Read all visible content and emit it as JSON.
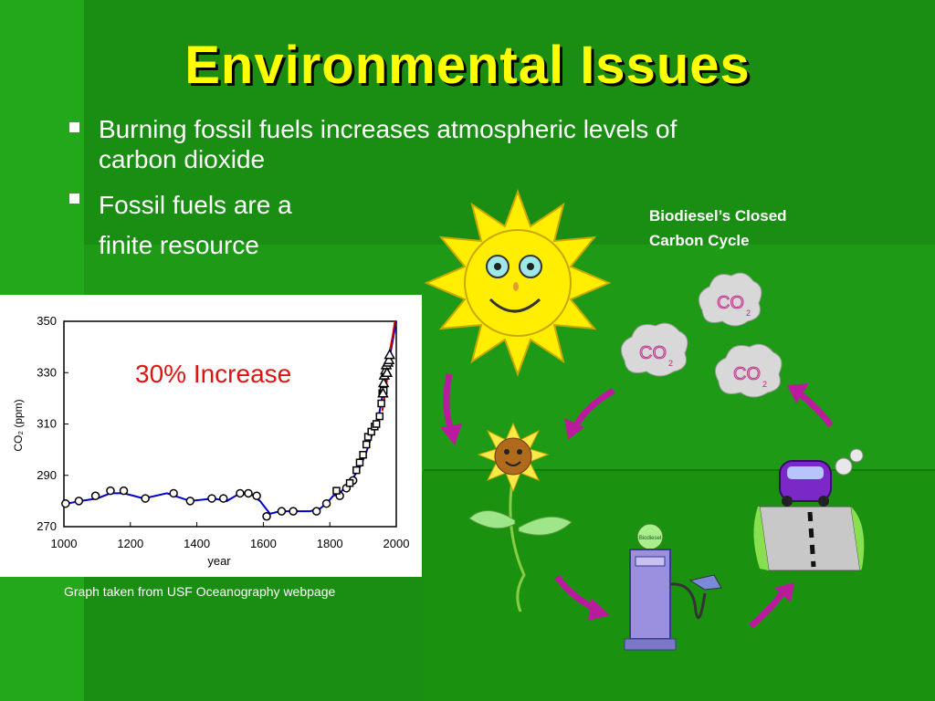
{
  "slide": {
    "title": "Environmental Issues",
    "colors": {
      "background": "#1a8d13",
      "title": "#ffff00",
      "text": "#ffffff",
      "annotation": "#e01313"
    }
  },
  "bullets": [
    {
      "line1": "Burning fossil fuels increases atmospheric levels of",
      "line2": "carbon dioxide"
    },
    {
      "line1": "Fossil fuels are a",
      "line2": "finite resource"
    }
  ],
  "chart_data": {
    "type": "line",
    "title": "",
    "annotation": "30% Increase",
    "xlabel": "year",
    "ylabel": "CO₂ (ppm)",
    "xlim": [
      1000,
      2000
    ],
    "ylim": [
      270,
      350
    ],
    "xticks": [
      1000,
      1200,
      1400,
      1600,
      1800,
      2000
    ],
    "yticks": [
      270,
      290,
      310,
      330,
      350
    ],
    "grid": false,
    "source_note": "Graph taken from USF Oceanography webpage",
    "series": [
      {
        "name": "",
        "style": "line",
        "color": "#0000cc",
        "points": [
          [
            1010,
            279
          ],
          [
            1050,
            280
          ],
          [
            1100,
            281
          ],
          [
            1140,
            283
          ],
          [
            1180,
            283
          ],
          [
            1240,
            281
          ],
          [
            1310,
            283
          ],
          [
            1380,
            280
          ],
          [
            1450,
            281
          ],
          [
            1490,
            280
          ],
          [
            1530,
            283
          ],
          [
            1560,
            283
          ],
          [
            1590,
            280
          ],
          [
            1620,
            275
          ],
          [
            1650,
            276
          ],
          [
            1700,
            276
          ],
          [
            1740,
            276
          ],
          [
            1770,
            277
          ],
          [
            1790,
            279
          ],
          [
            1810,
            282
          ],
          [
            1830,
            283
          ],
          [
            1850,
            286
          ],
          [
            1870,
            289
          ],
          [
            1880,
            291
          ],
          [
            1890,
            293
          ],
          [
            1900,
            296
          ],
          [
            1910,
            299
          ],
          [
            1920,
            303
          ],
          [
            1930,
            307
          ],
          [
            1940,
            310
          ],
          [
            1950,
            315
          ],
          [
            1960,
            322
          ],
          [
            1970,
            327
          ],
          [
            1980,
            336
          ],
          [
            1990,
            343
          ],
          [
            2000,
            350
          ]
        ]
      },
      {
        "name": "",
        "style": "line",
        "color": "#cc0000",
        "points": [
          [
            1958,
            315
          ],
          [
            1970,
            325
          ],
          [
            1980,
            338
          ],
          [
            1990,
            345
          ],
          [
            1996,
            350
          ]
        ]
      },
      {
        "name": "",
        "style": "markers-circle",
        "color": "#000000",
        "points": [
          [
            1005,
            279
          ],
          [
            1045,
            280
          ],
          [
            1095,
            282
          ],
          [
            1140,
            284
          ],
          [
            1180,
            284
          ],
          [
            1245,
            281
          ],
          [
            1330,
            283
          ],
          [
            1380,
            280
          ],
          [
            1445,
            281
          ],
          [
            1480,
            281
          ],
          [
            1530,
            283
          ],
          [
            1555,
            283
          ],
          [
            1580,
            282
          ],
          [
            1610,
            274
          ],
          [
            1655,
            276
          ],
          [
            1690,
            276
          ],
          [
            1760,
            276
          ],
          [
            1790,
            279
          ],
          [
            1830,
            282
          ],
          [
            1850,
            285
          ],
          [
            1870,
            288
          ]
        ]
      },
      {
        "name": "",
        "style": "markers-square",
        "color": "#000000",
        "points": [
          [
            1820,
            284
          ],
          [
            1860,
            287
          ],
          [
            1880,
            292
          ],
          [
            1890,
            295
          ],
          [
            1900,
            298
          ],
          [
            1910,
            302
          ],
          [
            1915,
            305
          ],
          [
            1925,
            307
          ],
          [
            1935,
            309
          ],
          [
            1940,
            310
          ],
          [
            1950,
            313
          ],
          [
            1955,
            318
          ],
          [
            1958,
            322
          ],
          [
            1962,
            323
          ]
        ]
      },
      {
        "name": "",
        "style": "markers-triangle",
        "color": "#000000",
        "points": [
          [
            1960,
            322
          ],
          [
            1962,
            326
          ],
          [
            1964,
            329
          ],
          [
            1968,
            331
          ],
          [
            1970,
            333
          ],
          [
            1972,
            330
          ],
          [
            1975,
            334
          ],
          [
            1978,
            335
          ],
          [
            1980,
            337
          ]
        ]
      }
    ]
  },
  "cycle": {
    "title_line1": "Biodiesel’s Closed",
    "title_line2": "Carbon Cycle",
    "co2_label": "CO",
    "co2_sub": "2",
    "pump_label": "Biodiesel",
    "colors": {
      "sun": "#ffee00",
      "arrow": "#b81c9c",
      "car": "#7b28c8",
      "pump": "#9b8fe0"
    }
  }
}
